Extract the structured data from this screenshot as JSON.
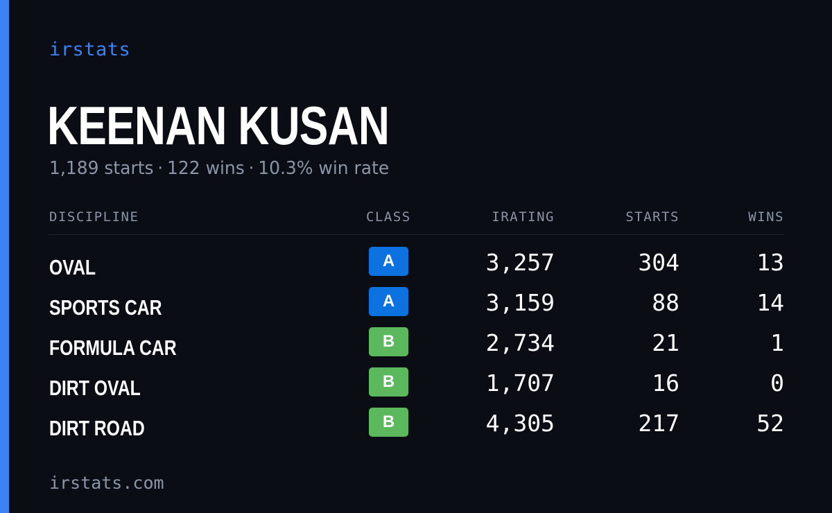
{
  "brand": "irstats",
  "driver": {
    "name": "KEENAN KUSAN",
    "starts_text": "1,189 starts",
    "wins_text": "122 wins",
    "win_rate_text": "10.3% win rate",
    "separator": "·"
  },
  "table": {
    "headers": {
      "discipline": "DISCIPLINE",
      "class": "CLASS",
      "irating": "IRATING",
      "starts": "STARTS",
      "wins": "WINS"
    },
    "rows": [
      {
        "discipline": "OVAL",
        "class": "A",
        "irating": "3,257",
        "starts": "304",
        "wins": "13"
      },
      {
        "discipline": "SPORTS CAR",
        "class": "A",
        "irating": "3,159",
        "starts": "88",
        "wins": "14"
      },
      {
        "discipline": "FORMULA CAR",
        "class": "B",
        "irating": "2,734",
        "starts": "21",
        "wins": "1"
      },
      {
        "discipline": "DIRT OVAL",
        "class": "B",
        "irating": "1,707",
        "starts": "16",
        "wins": "0"
      },
      {
        "discipline": "DIRT ROAD",
        "class": "B",
        "irating": "4,305",
        "starts": "217",
        "wins": "52"
      }
    ]
  },
  "class_colors": {
    "A": "#0b72e0",
    "B": "#5cb85c"
  },
  "accent_color": "#3b82f6",
  "footer": "irstats.com"
}
